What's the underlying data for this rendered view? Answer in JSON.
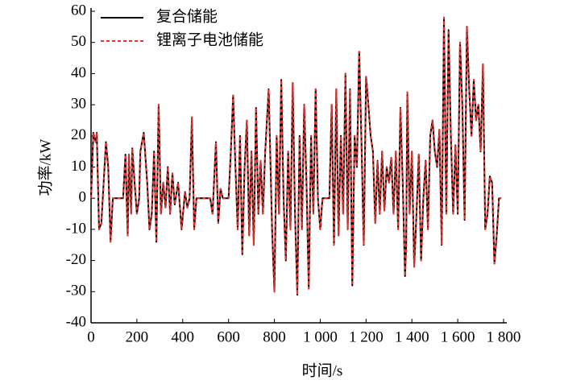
{
  "chart_data": {
    "type": "line",
    "xlabel": "时间/s",
    "ylabel": "功率/kW",
    "x": [
      0,
      10,
      20,
      25,
      35,
      45,
      55,
      65,
      75,
      85,
      95,
      100,
      140,
      150,
      160,
      165,
      175,
      180,
      190,
      200,
      210,
      215,
      230,
      245,
      255,
      265,
      275,
      285,
      295,
      305,
      315,
      325,
      335,
      345,
      355,
      365,
      380,
      395,
      410,
      420,
      430,
      440,
      450,
      460,
      520,
      530,
      545,
      555,
      565,
      575,
      600,
      610,
      620,
      630,
      640,
      650,
      660,
      670,
      680,
      690,
      700,
      710,
      720,
      730,
      740,
      750,
      760,
      775,
      790,
      800,
      810,
      820,
      830,
      840,
      850,
      860,
      870,
      880,
      890,
      900,
      910,
      920,
      930,
      940,
      950,
      960,
      970,
      980,
      990,
      1000,
      1010,
      1020,
      1040,
      1050,
      1060,
      1070,
      1080,
      1090,
      1100,
      1110,
      1120,
      1130,
      1140,
      1150,
      1160,
      1170,
      1180,
      1190,
      1200,
      1210,
      1220,
      1230,
      1240,
      1250,
      1260,
      1270,
      1280,
      1290,
      1300,
      1310,
      1320,
      1330,
      1340,
      1350,
      1360,
      1370,
      1375,
      1380,
      1390,
      1400,
      1410,
      1420,
      1430,
      1440,
      1450,
      1460,
      1470,
      1480,
      1490,
      1500,
      1510,
      1520,
      1530,
      1540,
      1550,
      1560,
      1570,
      1580,
      1590,
      1600,
      1610,
      1620,
      1630,
      1640,
      1650,
      1660,
      1670,
      1680,
      1690,
      1700,
      1710,
      1720,
      1730,
      1740,
      1750,
      1760,
      1770,
      1780,
      1790
    ],
    "series": [
      {
        "name": "复合储能",
        "color": "#000000",
        "dash": "solid",
        "values": [
          0,
          21,
          18,
          21,
          -10,
          -8,
          5,
          18,
          10,
          -14,
          0,
          0,
          0,
          14,
          -12,
          14,
          -5,
          16,
          5,
          -5,
          0,
          15,
          21,
          5,
          -10,
          -5,
          15,
          -14,
          30,
          -5,
          5,
          -3,
          10,
          -5,
          8,
          -2,
          5,
          -10,
          2,
          -3,
          0,
          26,
          -10,
          0,
          0,
          -5,
          18,
          -8,
          3,
          0,
          0,
          15,
          33,
          10,
          -10,
          20,
          -18,
          10,
          25,
          -12,
          15,
          -15,
          29,
          -5,
          12,
          -5,
          15,
          35,
          -10,
          -30,
          20,
          -5,
          38,
          0,
          -20,
          15,
          -10,
          37,
          -5,
          -31,
          20,
          -10,
          30,
          5,
          -29,
          20,
          -5,
          35,
          0,
          -10,
          0,
          0,
          0,
          30,
          -15,
          35,
          -12,
          20,
          -5,
          40,
          -10,
          35,
          -28,
          20,
          10,
          47,
          18,
          -15,
          39,
          30,
          20,
          15,
          -8,
          12,
          -5,
          15,
          -4,
          10,
          5,
          13,
          -5,
          15,
          -10,
          29,
          5,
          -25,
          -15,
          34,
          -5,
          15,
          -22,
          -5,
          14,
          -20,
          0,
          12,
          -10,
          20,
          25,
          15,
          10,
          22,
          -15,
          58,
          -5,
          54,
          20,
          -5,
          17,
          -5,
          50,
          30,
          -7,
          55,
          35,
          20,
          38,
          25,
          30,
          15,
          43,
          -10,
          -5,
          7,
          5,
          -21,
          -12,
          0,
          0
        ]
      },
      {
        "name": "锂离子电池储能",
        "color": "#e8312a",
        "dash": "dashed",
        "values": [
          0,
          21,
          18,
          21,
          -10,
          -8,
          5,
          18,
          10,
          -14,
          0,
          0,
          0,
          14,
          -12,
          14,
          -5,
          16,
          5,
          -5,
          0,
          15,
          21,
          5,
          -10,
          -5,
          15,
          -14,
          30,
          -5,
          5,
          -3,
          10,
          -5,
          8,
          -2,
          5,
          -10,
          2,
          -3,
          0,
          26,
          -10,
          0,
          0,
          -5,
          18,
          -8,
          3,
          0,
          0,
          15,
          33,
          10,
          -10,
          20,
          -18,
          10,
          25,
          -12,
          15,
          -15,
          29,
          -5,
          12,
          -5,
          15,
          35,
          -10,
          -30,
          20,
          -5,
          38,
          0,
          -20,
          15,
          -10,
          37,
          -5,
          -31,
          20,
          -10,
          30,
          5,
          -29,
          20,
          -5,
          35,
          0,
          -10,
          0,
          0,
          0,
          30,
          -15,
          35,
          -12,
          20,
          -5,
          40,
          -10,
          35,
          -28,
          20,
          10,
          47,
          18,
          -15,
          39,
          30,
          20,
          15,
          -8,
          12,
          -5,
          15,
          -4,
          10,
          5,
          13,
          -5,
          15,
          -10,
          29,
          5,
          -25,
          -15,
          34,
          -5,
          15,
          -22,
          -5,
          14,
          -20,
          0,
          12,
          -10,
          20,
          25,
          15,
          10,
          22,
          -15,
          58,
          -5,
          54,
          20,
          -5,
          17,
          -5,
          50,
          30,
          -7,
          55,
          35,
          20,
          38,
          25,
          30,
          15,
          43,
          -10,
          -5,
          7,
          5,
          -21,
          -12,
          0,
          0
        ]
      }
    ],
    "xlim": [
      0,
      1800
    ],
    "xticks": [
      0,
      200,
      400,
      600,
      800,
      {
        "value": 1000,
        "label": "1 000"
      },
      {
        "value": 1200,
        "label": "1 200"
      },
      {
        "value": 1400,
        "label": "1 400"
      },
      {
        "value": 1600,
        "label": "1 600"
      },
      {
        "value": 1800,
        "label": "1 800"
      }
    ],
    "ylim": [
      -40,
      60
    ],
    "yticks": [
      -40,
      -30,
      -20,
      -10,
      0,
      10,
      20,
      30,
      40,
      50,
      60
    ],
    "legend": "upper left",
    "grid": false
  }
}
